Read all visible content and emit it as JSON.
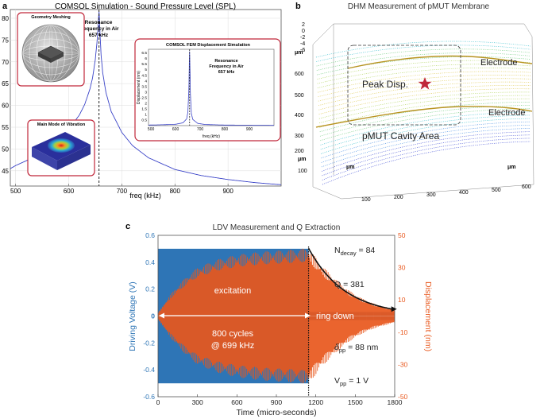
{
  "panels": {
    "a": {
      "letter": "a",
      "title": "COMSOL Simulation - Sound Pressure Level (SPL)",
      "inset_geometry_title": "Geometry Meshing",
      "inset_mode_title": "Main Mode of Vibration",
      "resonance_label": [
        "Resonance",
        "Frequency in Air",
        "657 kHz"
      ],
      "inset_fem": {
        "title": "COMSOL FEM Displacement Simulation",
        "ylabel": "Displacement (nm)",
        "xlabel": "freq (kHz)",
        "resonance_label": [
          "Resonance",
          "Frequency in Air",
          "657 kHz"
        ],
        "xticks": [
          "500",
          "600",
          "700",
          "800",
          "900"
        ],
        "yticks": [
          "0.5",
          "1",
          "1.5",
          "2",
          "2.5",
          "3",
          "3.5",
          "4",
          "4.5",
          "5",
          "5.5",
          "6",
          "6.5"
        ]
      }
    },
    "b": {
      "letter": "b",
      "title": "DHM Measurement of pMUT Membrane",
      "labels": {
        "electrode_top": "Electrode",
        "electrode_bottom": "Electrode",
        "peak": "Peak Disp.",
        "cavity": "pMUT Cavity Area"
      },
      "z_ticks": [
        "2",
        "0",
        "-2",
        "-4",
        "-6"
      ],
      "left_ticks": [
        "600",
        "500",
        "400",
        "300",
        "200",
        "100"
      ],
      "bottom_ticks": [
        "100",
        "200",
        "300",
        "400",
        "500",
        "600"
      ],
      "unit_labels": [
        "μm",
        "μm",
        "μm",
        "μm"
      ]
    },
    "c": {
      "letter": "c",
      "title": "LDV Measurement and Q Extraction",
      "annotations": {
        "excitation": "excitation",
        "ring_down": "ring down",
        "cycles": "800 cycles",
        "freq": "@ 699 kHz",
        "n_decay_main": "N",
        "n_decay_sub": "decay",
        "n_decay_val": " = 84",
        "q": "Q = 381",
        "dpp_main": "δ",
        "dpp_sub": "pp",
        "dpp_val": " = 88 nm",
        "vpp_main": "V",
        "vpp_sub": "pp",
        "vpp_val": " = 1 V"
      }
    }
  },
  "colors": {
    "voltage": "#2e75b6",
    "displacement": "#e8571c",
    "sim_line": "#3b44c8",
    "inset_border": "#c0273a",
    "peak_star": "#c0273a",
    "dashed": "#222222"
  },
  "chart_data": [
    {
      "type": "line",
      "title": "COMSOL Simulation - Sound Pressure Level (SPL)",
      "xlabel": "freq (kHz)",
      "ylabel": "",
      "xlim": [
        490,
        1000
      ],
      "ylim": [
        41.5,
        82
      ],
      "xticks": [
        500,
        600,
        700,
        800,
        900
      ],
      "yticks": [
        45,
        50,
        55,
        60,
        65,
        70,
        75,
        80
      ],
      "grid": true,
      "series": [
        {
          "x": [
            490,
            500,
            520,
            540,
            560,
            580,
            600,
            620,
            630,
            640,
            645,
            650,
            653,
            655,
            656,
            657,
            658,
            659,
            661,
            664,
            670,
            680,
            700,
            720,
            750,
            800,
            850,
            900,
            950,
            1000
          ],
          "y": [
            45.5,
            46.2,
            47.3,
            48.7,
            50.2,
            52.1,
            54.5,
            57.8,
            60.2,
            63.8,
            66.4,
            70.5,
            74.2,
            77.6,
            79.8,
            81.5,
            79.5,
            76.0,
            71.5,
            67.5,
            63.0,
            58.6,
            53.8,
            50.8,
            48.0,
            45.3,
            43.9,
            43.0,
            42.3,
            41.8
          ]
        }
      ],
      "vline": 657
    },
    {
      "type": "line",
      "title": "COMSOL FEM Displacement Simulation",
      "xlabel": "freq (kHz)",
      "ylabel": "Displacement (nm)",
      "xlim": [
        490,
        1000
      ],
      "ylim": [
        0,
        6.8
      ],
      "series": [
        {
          "x": [
            490,
            550,
            600,
            630,
            645,
            650,
            654,
            656,
            657,
            658,
            660,
            664,
            670,
            690,
            720,
            800,
            900,
            1000
          ],
          "y": [
            0.05,
            0.08,
            0.12,
            0.25,
            0.6,
            1.2,
            3.2,
            5.8,
            6.6,
            5.8,
            3.0,
            1.1,
            0.55,
            0.2,
            0.1,
            0.05,
            0.04,
            0.03
          ]
        }
      ],
      "vline": 657
    },
    {
      "type": "line",
      "title": "LDV Measurement and Q Extraction",
      "xlabel": "Time (micro-seconds)",
      "ylabel": "Driving Voltage (V)",
      "ylabel_right": "Displacement (nm)",
      "xlim": [
        0,
        1800
      ],
      "ylim": [
        -0.6,
        0.6
      ],
      "ylim_right": [
        -50,
        50
      ],
      "xticks": [
        0,
        300,
        600,
        900,
        1200,
        1500,
        1800
      ],
      "yticks": [
        -0.6,
        -0.4,
        -0.2,
        0,
        0.2,
        0.4,
        0.6
      ],
      "yticks_right": [
        -50,
        -30,
        -10,
        10,
        30,
        50
      ],
      "series": [
        {
          "name": "Driving Voltage (V)",
          "axis": "left",
          "x_range": [
            0,
            1145
          ],
          "amplitude": 0.5,
          "after_end_amplitude": 0.03
        },
        {
          "name": "Displacement (nm)",
          "axis": "right",
          "envelope_x": [
            0,
            100,
            200,
            300,
            450,
            600,
            800,
            1000,
            1145,
            1250,
            1350,
            1450,
            1550,
            1650,
            1800
          ],
          "envelope_y": [
            2,
            14,
            23,
            30,
            35,
            38,
            40,
            41,
            42,
            31,
            23,
            16,
            11,
            7.5,
            4
          ]
        }
      ],
      "dotted_vline": 1145,
      "decay_fit": {
        "x_start": 1145,
        "x_end": 1800,
        "y_start": 42,
        "y_end": 4,
        "axis": "right"
      }
    }
  ]
}
